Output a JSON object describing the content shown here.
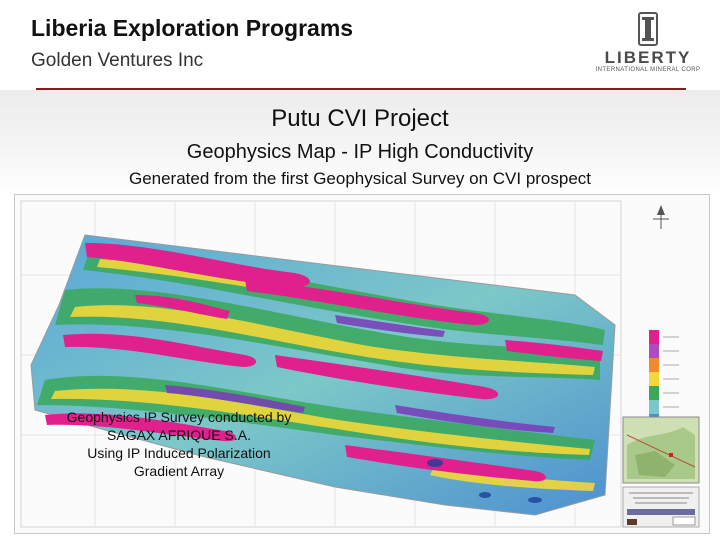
{
  "header": {
    "title": "Liberia Exploration Programs",
    "subtitle": "Golden Ventures Inc"
  },
  "logo": {
    "icon": "liberty-emblem-icon",
    "wordmark": "LIBERTY",
    "tagline": "INTERNATIONAL MINERAL CORP"
  },
  "slide": {
    "project": "Putu CVI Project",
    "map_title": "Geophysics Map - IP High Conductivity",
    "description": "Generated from the first Geophysical Survey on CVI prospect"
  },
  "map_caption": {
    "line1": "Geophysics IP Survey conducted by",
    "line2": "SAGAX AFRIQUE S.A.",
    "line3": "Using IP Induced Polarization",
    "line4": "Gradient Array"
  },
  "colors": {
    "rule": "#8b1a1a",
    "anomaly_high": "#e0208c",
    "anomaly_mid": "#f2d83a",
    "background_low": "#5aa6d8"
  }
}
